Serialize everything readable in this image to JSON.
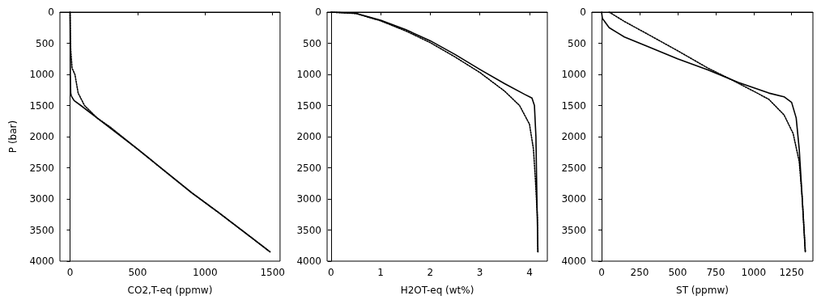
{
  "chart_data": [
    {
      "type": "line",
      "xlabel": "CO2,T-eq (ppmw)",
      "ylabel": "P (bar)",
      "xlim": [
        -75,
        1555
      ],
      "xticks": [
        0,
        500,
        1000,
        1500
      ],
      "ylim": [
        4000,
        0
      ],
      "yticks": [
        0,
        500,
        1000,
        1500,
        2000,
        2500,
        3000,
        3500,
        4000
      ],
      "marker": "none",
      "series": [
        {
          "color": "#000000",
          "line_style": "solid",
          "x": [
            0,
            1,
            2,
            5,
            10,
            30,
            80,
            200,
            350,
            500,
            700,
            900,
            1100,
            1300,
            1480
          ],
          "values": [
            0,
            500,
            1000,
            1300,
            1350,
            1420,
            1500,
            1700,
            1950,
            2200,
            2550,
            2900,
            3220,
            3550,
            3850
          ]
        },
        {
          "color": "#000000",
          "line_style": "dotted",
          "x": [
            0,
            2,
            5,
            15,
            36,
            60,
            107,
            200,
            300,
            500,
            700,
            900,
            1100,
            1300,
            1480
          ],
          "values": [
            0,
            300,
            600,
            900,
            1000,
            1300,
            1500,
            1700,
            1850,
            2200,
            2550,
            2900,
            3220,
            3550,
            3850
          ]
        }
      ]
    },
    {
      "type": "line",
      "xlabel": "H2OT-eq (wt%)",
      "xlim": [
        -0.08,
        4.36
      ],
      "xticks": [
        0,
        1,
        2,
        3,
        4
      ],
      "ylim": [
        4000,
        0
      ],
      "yticks": [
        0,
        500,
        1000,
        1500,
        2000,
        2500,
        3000,
        3500,
        4000
      ],
      "marker": "none",
      "series": [
        {
          "color": "#000000",
          "line_style": "solid",
          "x": [
            0,
            0.5,
            1,
            1.5,
            2,
            2.5,
            3,
            3.5,
            3.9,
            4.05,
            4.1,
            4.13,
            4.15,
            4.17
          ],
          "values": [
            0,
            20,
            130,
            280,
            460,
            680,
            920,
            1150,
            1320,
            1380,
            1500,
            2000,
            3000,
            3850
          ]
        },
        {
          "color": "#000000",
          "line_style": "dotted",
          "x": [
            0,
            0.5,
            1,
            1.5,
            2,
            2.5,
            3,
            3.5,
            3.8,
            4.0,
            4.08,
            4.12,
            4.16,
            4.17
          ],
          "values": [
            0,
            22,
            140,
            300,
            490,
            720,
            970,
            1270,
            1500,
            1800,
            2200,
            2700,
            3300,
            3850
          ]
        }
      ]
    },
    {
      "type": "line",
      "xlabel": "ST (ppmw)",
      "xlim": [
        -64,
        1390
      ],
      "xticks": [
        0,
        250,
        500,
        750,
        1000,
        1250
      ],
      "ylim": [
        4000,
        0
      ],
      "yticks": [
        0,
        500,
        1000,
        1500,
        2000,
        2500,
        3000,
        3500,
        4000
      ],
      "marker": "none",
      "series": [
        {
          "color": "#000000",
          "line_style": "solid",
          "x": [
            0,
            5,
            50,
            150,
            300,
            500,
            700,
            900,
            1100,
            1200,
            1250,
            1280,
            1300,
            1320,
            1340
          ],
          "values": [
            0,
            100,
            250,
            400,
            550,
            750,
            930,
            1130,
            1300,
            1360,
            1450,
            1700,
            2200,
            3000,
            3850
          ]
        },
        {
          "color": "#000000",
          "line_style": "dotted",
          "x": [
            50,
            150,
            300,
            500,
            700,
            850,
            1000,
            1100,
            1200,
            1260,
            1300,
            1320,
            1340
          ],
          "values": [
            0,
            150,
            350,
            620,
            900,
            1080,
            1270,
            1400,
            1650,
            1950,
            2400,
            3000,
            3850
          ]
        }
      ]
    }
  ]
}
